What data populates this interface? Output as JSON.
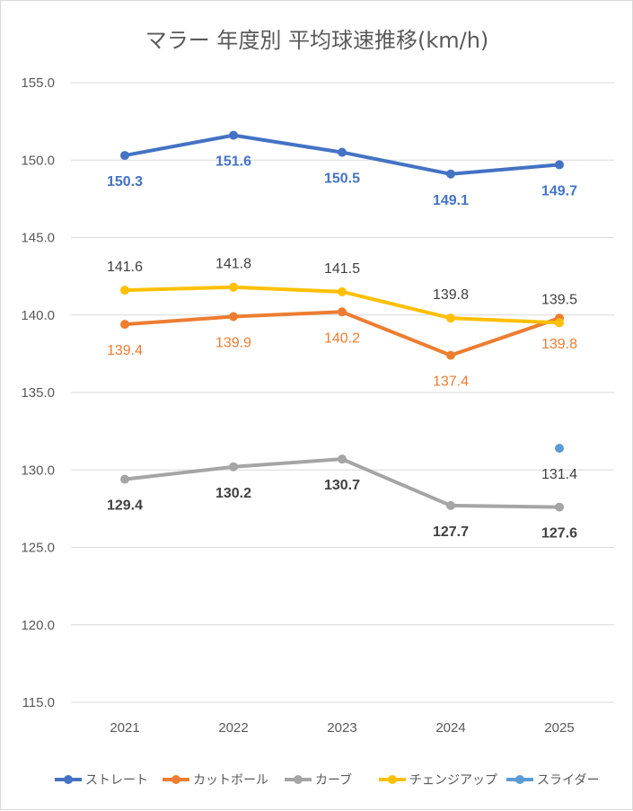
{
  "chart_data": {
    "type": "line",
    "title": "マラー 年度別 平均球速推移(km/h)",
    "xlabel": "",
    "ylabel": "",
    "categories": [
      "2021",
      "2022",
      "2023",
      "2024",
      "2025"
    ],
    "ylim": [
      115.0,
      155.0
    ],
    "yticks": [
      "115.0",
      "120.0",
      "125.0",
      "130.0",
      "135.0",
      "140.0",
      "145.0",
      "150.0",
      "155.0"
    ],
    "grid": true,
    "legend_position": "bottom",
    "series": [
      {
        "name": "ストレート",
        "color": "#4472C4",
        "label_color": "#4472C4",
        "bold": true,
        "label_pos": "below",
        "values": [
          150.3,
          151.6,
          150.5,
          149.1,
          149.7
        ],
        "labels": [
          "150.3",
          "151.6",
          "150.5",
          "149.1",
          "149.7"
        ]
      },
      {
        "name": "カットボール",
        "color": "#ED7D31",
        "label_color": "#ED7D31",
        "bold": false,
        "label_pos": "below",
        "values": [
          139.4,
          139.9,
          140.2,
          137.4,
          139.8
        ],
        "labels": [
          "139.4",
          "139.9",
          "140.2",
          "137.4",
          "139.8"
        ]
      },
      {
        "name": "カーブ",
        "color": "#A5A5A5",
        "label_color": "#404040",
        "bold": true,
        "label_pos": "below",
        "values": [
          129.4,
          130.2,
          130.7,
          127.7,
          127.6
        ],
        "labels": [
          "129.4",
          "130.2",
          "130.7",
          "127.7",
          "127.6"
        ]
      },
      {
        "name": "チェンジアップ",
        "color": "#FFC000",
        "label_color": "#404040",
        "bold": false,
        "label_pos": "above",
        "values": [
          141.6,
          141.8,
          141.5,
          139.8,
          139.5
        ],
        "labels": [
          "141.6",
          "141.8",
          "141.5",
          "139.8",
          "139.5"
        ]
      },
      {
        "name": "スライダー",
        "color": "#5B9BD5",
        "label_color": "#404040",
        "bold": false,
        "label_pos": "below",
        "values": [
          null,
          null,
          null,
          null,
          131.4
        ],
        "labels": [
          "",
          "",
          "",
          "",
          "131.4"
        ]
      }
    ]
  }
}
